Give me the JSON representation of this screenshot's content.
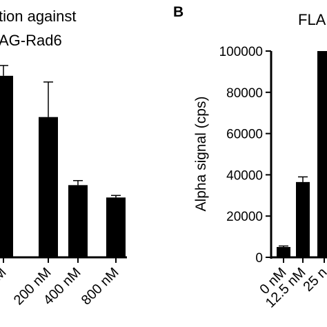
{
  "panel_b_label": "B",
  "chart_data": [
    {
      "type": "bar",
      "panel": "A",
      "title_lines": [
        "tion against",
        "AG-Rad6"
      ],
      "categories": [
        "M",
        "200 nM",
        "400 nM",
        "800 nM"
      ],
      "values": [
        88000,
        68000,
        35000,
        29000
      ],
      "errors": [
        5000,
        17000,
        2200,
        1000
      ],
      "ylim": [
        0,
        100000
      ]
    },
    {
      "type": "bar",
      "panel": "B",
      "title": "FLA",
      "ylabel": "Alpha signal (cps)",
      "ylim": [
        0,
        100000
      ],
      "yticks": [
        0,
        20000,
        40000,
        60000,
        80000,
        100000
      ],
      "ytick_labels": [
        "0",
        "20000",
        "40000",
        "60000",
        "80000",
        "100000"
      ],
      "categories": [
        "0 nM",
        "12.5 nM",
        "25 n"
      ],
      "values": [
        5000,
        36500,
        100000
      ],
      "errors": [
        500,
        2500,
        0
      ]
    }
  ]
}
